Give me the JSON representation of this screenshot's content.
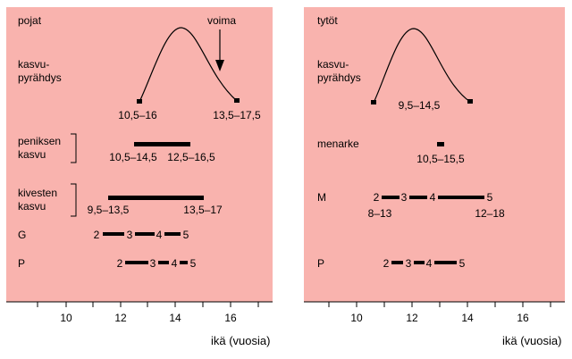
{
  "colors": {
    "panel": "#f9b3ae",
    "ink": "#000000"
  },
  "axis_label": "ikä (vuosia)",
  "x_ticks": [
    "10",
    "12",
    "14",
    "16"
  ],
  "boys": {
    "title": "pojat",
    "growth_label_1": "kasvu-",
    "growth_label_2": "pyrähdys",
    "peak_label": "voima",
    "growth_start_range": "10,5–16",
    "growth_end_range": "13,5–17,5",
    "penis_label_1": "peniksen",
    "penis_label_2": "kasvu",
    "penis_start_range": "10,5–14,5",
    "penis_end_range": "12,5–16,5",
    "testes_label_1": "kivesten",
    "testes_label_2": "kasvu",
    "testes_start_range": "9,5–13,5",
    "testes_end_range": "13,5–17",
    "g_label": "G",
    "p_label": "P",
    "stages": [
      "2",
      "3",
      "4",
      "5"
    ]
  },
  "girls": {
    "title": "tytöt",
    "growth_label_1": "kasvu-",
    "growth_label_2": "pyrähdys",
    "growth_range": "9,5–14,5",
    "menarche_label": "menarke",
    "menarche_range": "10,5–15,5",
    "m_label": "M",
    "m_start_range": "8–13",
    "m_end_range": "12–18",
    "p_label": "P",
    "stages": [
      "2",
      "3",
      "4",
      "5"
    ]
  }
}
